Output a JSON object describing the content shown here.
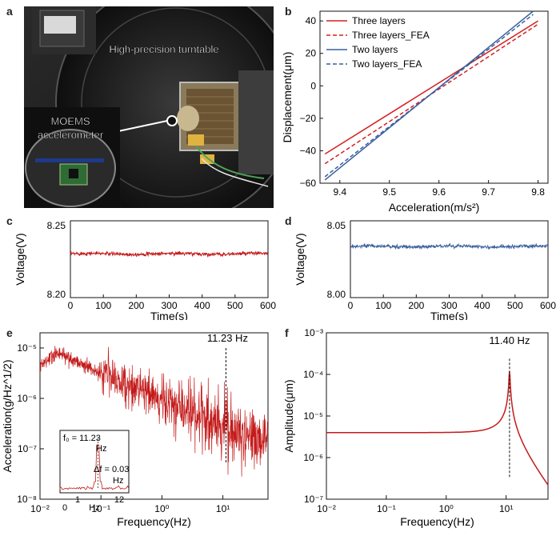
{
  "panels": {
    "a": {
      "label": "a",
      "callout_turntable": "High-precision turntable",
      "callout_moems_1": "MOEMS",
      "callout_moems_2": "accelerometer"
    },
    "b": {
      "label": "b"
    },
    "c": {
      "label": "c"
    },
    "d": {
      "label": "d"
    },
    "e": {
      "label": "e"
    },
    "f": {
      "label": "f"
    }
  },
  "colors": {
    "red": "#d42020",
    "dark_red": "#b81414",
    "blue": "#3a5f9e",
    "black": "#111111"
  },
  "chart_data": [
    {
      "id": "b",
      "type": "line",
      "xlabel": "Acceleration(m/s²)",
      "ylabel": "Displacement(μm)",
      "xlim": [
        9.36,
        9.82
      ],
      "ylim": [
        -60,
        46
      ],
      "xticks": [
        "9.4",
        "9.5",
        "9.6",
        "9.7",
        "9.8"
      ],
      "yticks": [
        "40",
        "20",
        "0",
        "−20",
        "−40",
        "−60"
      ],
      "legend_position": "top-left",
      "series": [
        {
          "name": "Three layers",
          "style": "solid",
          "color": "#d42020",
          "x": [
            9.37,
            9.8
          ],
          "y": [
            -42,
            40
          ]
        },
        {
          "name": "Three layers_FEA",
          "style": "dashed",
          "color": "#d42020",
          "x": [
            9.37,
            9.8
          ],
          "y": [
            -48,
            38
          ]
        },
        {
          "name": "Two layers",
          "style": "solid",
          "color": "#3a5f9e",
          "x": [
            9.37,
            9.79
          ],
          "y": [
            -58,
            46
          ]
        },
        {
          "name": "Two layers_FEA",
          "style": "dashed",
          "color": "#3a5f9e",
          "x": [
            9.37,
            9.79
          ],
          "y": [
            -56,
            44
          ]
        }
      ]
    },
    {
      "id": "c",
      "type": "line",
      "xlabel": "Time(s)",
      "ylabel": "Voltage(V)",
      "xlim": [
        0,
        600
      ],
      "ylim": [
        8.2,
        8.25
      ],
      "xticks": [
        "0",
        "100",
        "200",
        "300",
        "400",
        "500",
        "600"
      ],
      "yticks": [
        "8.25",
        "8.20"
      ],
      "series": [
        {
          "color": "#c41a1a",
          "mean": 8.2285,
          "noise": 0.0006
        }
      ]
    },
    {
      "id": "d",
      "type": "line",
      "xlabel": "Time(s)",
      "ylabel": "Voltage(V)",
      "xlim": [
        0,
        600
      ],
      "ylim": [
        8.0,
        8.05
      ],
      "xticks": [
        "0",
        "100",
        "200",
        "300",
        "400",
        "500",
        "600"
      ],
      "yticks": [
        "8.05",
        "8.00"
      ],
      "series": [
        {
          "color": "#3a5f9e",
          "mean": 8.0333,
          "noise": 0.0006
        }
      ]
    },
    {
      "id": "e",
      "type": "line",
      "xlabel": "Frequency(Hz)",
      "ylabel": "Acceleration(g/Hz^1/2)",
      "xscale": "log",
      "yscale": "log",
      "xlim": [
        0.01,
        55
      ],
      "ylim": [
        1e-08,
        2e-05
      ],
      "xtick_labels": [
        "10⁻²",
        "10⁻¹",
        "10⁰",
        "10¹"
      ],
      "ytick_labels": [
        "10⁻⁵",
        "10⁻⁶",
        "10⁻⁷",
        "10⁻⁸"
      ],
      "annotation": "11.23 Hz",
      "peak_x": 11.23,
      "inset": {
        "f0_line1": "f₀ = 11.23",
        "f0_line2": "Hz",
        "df_line1": "Δf = 0.03",
        "df_line2": "Hz",
        "xticks": [
          "1",
          "12"
        ],
        "xtick_extra": "0",
        "xlabel": "Hz"
      }
    },
    {
      "id": "f",
      "type": "line",
      "xlabel": "Frequency(Hz)",
      "ylabel": "Amplitude(μm)",
      "xscale": "log",
      "yscale": "log",
      "xlim": [
        0.01,
        50
      ],
      "ylim": [
        1e-07,
        0.001
      ],
      "xtick_labels": [
        "10⁻²",
        "10⁻¹",
        "10⁰",
        "10¹"
      ],
      "ytick_labels": [
        "10⁻³",
        "10⁻⁴",
        "10⁻⁵",
        "10⁻⁶",
        "10⁻⁷"
      ],
      "annotation": "11.40 Hz",
      "peak_x": 11.4,
      "series": [
        {
          "color": "#c41a1a",
          "baseline": 4e-06,
          "peak": 0.00024,
          "end": 2.2e-07
        }
      ]
    }
  ]
}
